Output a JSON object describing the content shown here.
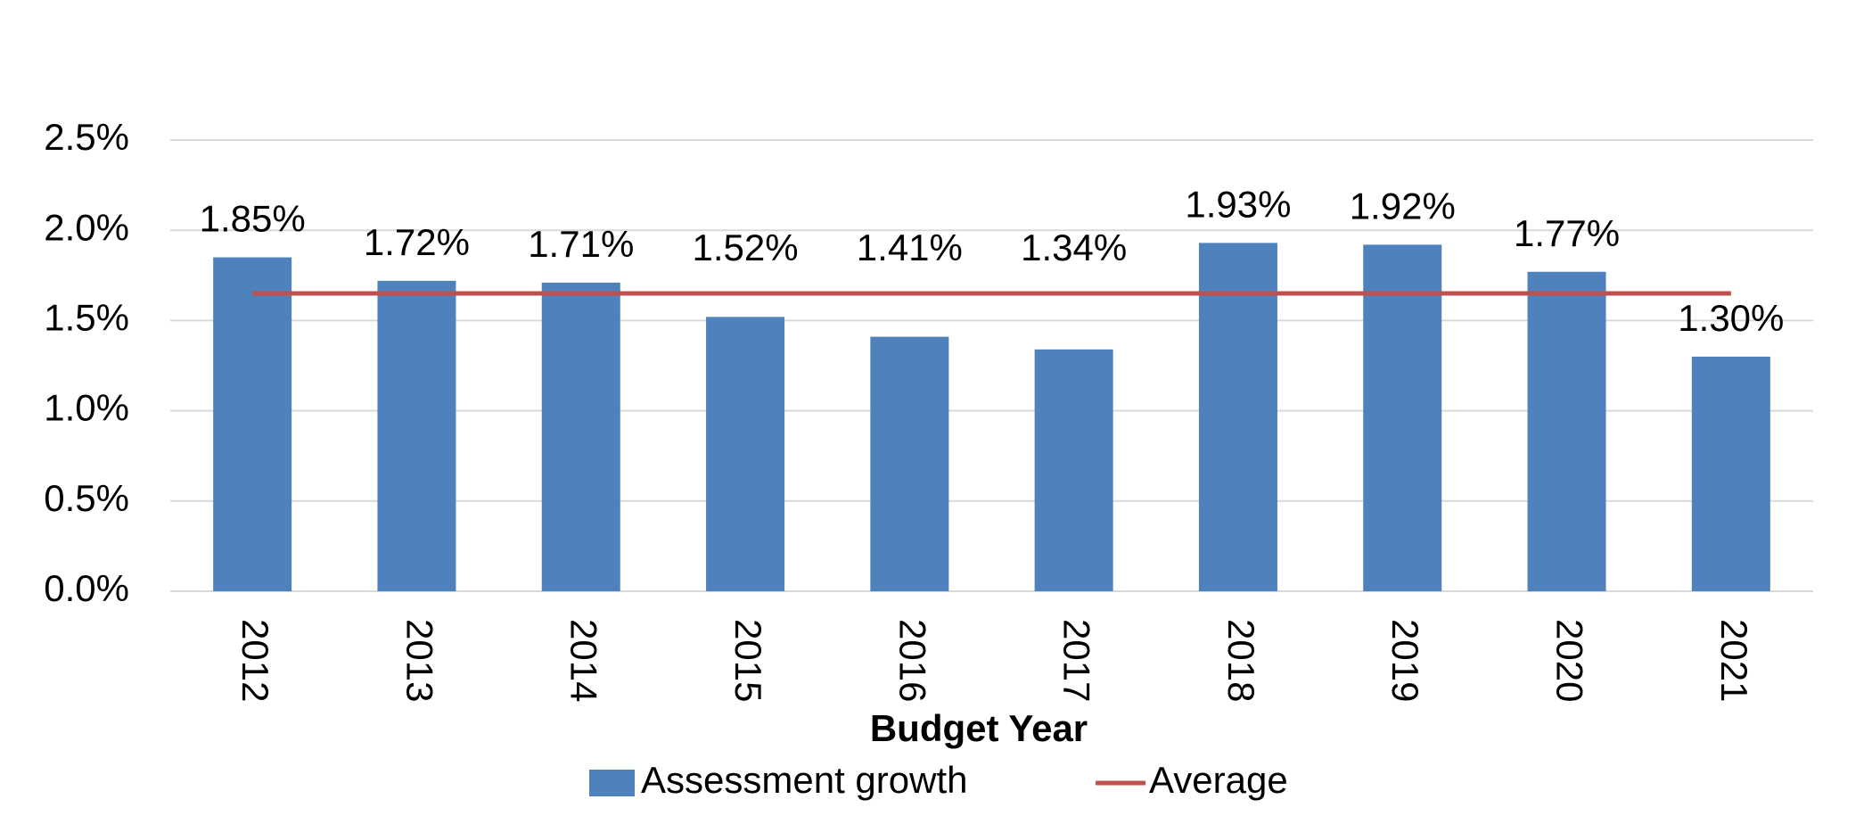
{
  "chart_data": {
    "type": "bar",
    "x_label": "Budget Year",
    "categories": [
      "2012",
      "2013",
      "2014",
      "2015",
      "2016",
      "2017",
      "2018",
      "2019",
      "2020",
      "2021"
    ],
    "series": [
      {
        "name": "Assessment growth",
        "type": "bar",
        "color": "#4f81bd",
        "values": [
          1.85,
          1.72,
          1.71,
          1.52,
          1.41,
          1.34,
          1.93,
          1.92,
          1.77,
          1.3
        ],
        "value_labels": [
          "1.85%",
          "1.72%",
          "1.71%",
          "1.52%",
          "1.41%",
          "1.34%",
          "1.93%",
          "1.92%",
          "1.77%",
          "1.30%"
        ]
      },
      {
        "name": "Average",
        "type": "line",
        "color": "#c0504d",
        "values": [
          1.65,
          1.65,
          1.65,
          1.65,
          1.65,
          1.65,
          1.65,
          1.65,
          1.65,
          1.65
        ]
      }
    ],
    "ylim": [
      0,
      2.5
    ],
    "yticks": [
      {
        "value": 0,
        "label": "0.0%"
      },
      {
        "value": 0.5,
        "label": "0.5%"
      },
      {
        "value": 1.0,
        "label": "1.0%"
      },
      {
        "value": 1.5,
        "label": "1.5%"
      },
      {
        "value": 2.0,
        "label": "2.0%"
      },
      {
        "value": 2.5,
        "label": "2.5%"
      }
    ],
    "grid": true,
    "legend": "bottom"
  }
}
